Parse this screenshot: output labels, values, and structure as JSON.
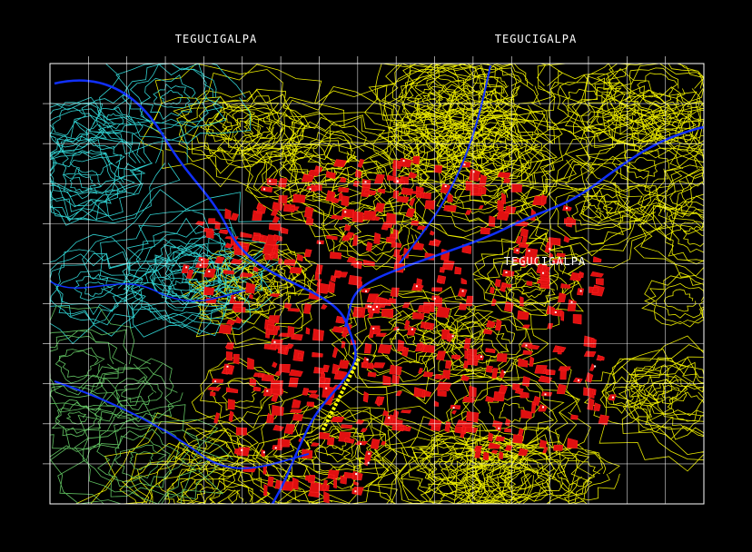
{
  "header": {
    "left_title": "TEGUCIGALPA",
    "right_title": "TEGUCIGALPA"
  },
  "map": {
    "city_label": "TEGUCIGALPA"
  }
}
